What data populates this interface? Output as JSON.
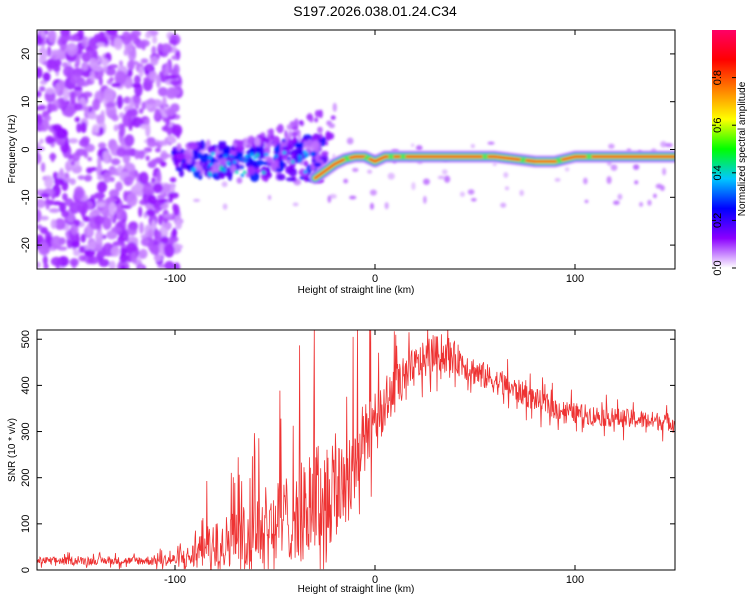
{
  "title": "S197.2026.038.01.24.C34",
  "chart_data": [
    {
      "type": "heatmap",
      "name": "spectrogram",
      "xlabel": "Height of straight line (km)",
      "ylabel": "Frequency (Hz)",
      "xlim": [
        -169,
        150
      ],
      "ylim": [
        -25,
        25
      ],
      "xticks": [
        -100,
        0,
        100
      ],
      "xtick_labels": [
        "-100",
        "0",
        "100"
      ],
      "yticks": [
        -20,
        -10,
        0,
        10,
        20
      ],
      "ytick_labels": [
        "-20",
        "-10",
        "0",
        "10",
        "20"
      ],
      "colorbar": {
        "label": "Normalized spectral amplitude",
        "range": [
          0,
          1
        ],
        "ticks": [
          0.0,
          0.2,
          0.4,
          0.6,
          0.8
        ],
        "tick_labels": [
          "0.0",
          "0.2",
          "0.4",
          "0.6",
          "0.8"
        ],
        "colors": [
          "#ffffff",
          "#8b00ff",
          "#0000ff",
          "#00c8ff",
          "#00ff00",
          "#ffff00",
          "#ff8000",
          "#ff0000",
          "#ff0066"
        ]
      },
      "ridge": {
        "description_points_x": [
          -30,
          -25,
          -20,
          -15,
          -10,
          -5,
          0,
          5,
          10,
          20,
          40,
          60,
          80,
          85,
          90,
          100,
          120,
          150
        ],
        "description_points_y": [
          -6,
          -4.5,
          -3,
          -2,
          -1.5,
          -1.5,
          -2.5,
          -1.5,
          -1.5,
          -1.5,
          -1.5,
          -1.5,
          -2.5,
          -2.5,
          -2.5,
          -1.5,
          -1.5,
          -1.5
        ]
      }
    },
    {
      "type": "line",
      "name": "snr",
      "xlabel": "Height of straight line (km)",
      "ylabel": "SNR (10 * v/v)",
      "xlim": [
        -169,
        150
      ],
      "ylim": [
        0,
        520
      ],
      "xticks": [
        -100,
        0,
        100
      ],
      "xtick_labels": [
        "-100",
        "0",
        "100"
      ],
      "yticks": [
        0,
        100,
        200,
        300,
        400,
        500
      ],
      "ytick_labels": [
        "0",
        "100",
        "200",
        "300",
        "400",
        "500"
      ],
      "color": "#ee3333",
      "envelope_x": [
        -169,
        -120,
        -100,
        -90,
        -80,
        -70,
        -60,
        -50,
        -40,
        -30,
        -20,
        -10,
        0,
        10,
        20,
        30,
        40,
        50,
        60,
        70,
        80,
        90,
        100,
        120,
        150
      ],
      "envelope_y": [
        20,
        20,
        22,
        30,
        55,
        70,
        90,
        100,
        120,
        150,
        175,
        230,
        330,
        390,
        440,
        470,
        460,
        430,
        410,
        390,
        370,
        350,
        340,
        330,
        320
      ],
      "noise_amplitude": [
        12,
        12,
        20,
        45,
        70,
        90,
        110,
        130,
        140,
        170,
        180,
        150,
        90,
        80,
        60,
        55,
        50,
        45,
        40,
        38,
        36,
        34,
        32,
        30,
        28
      ]
    }
  ]
}
